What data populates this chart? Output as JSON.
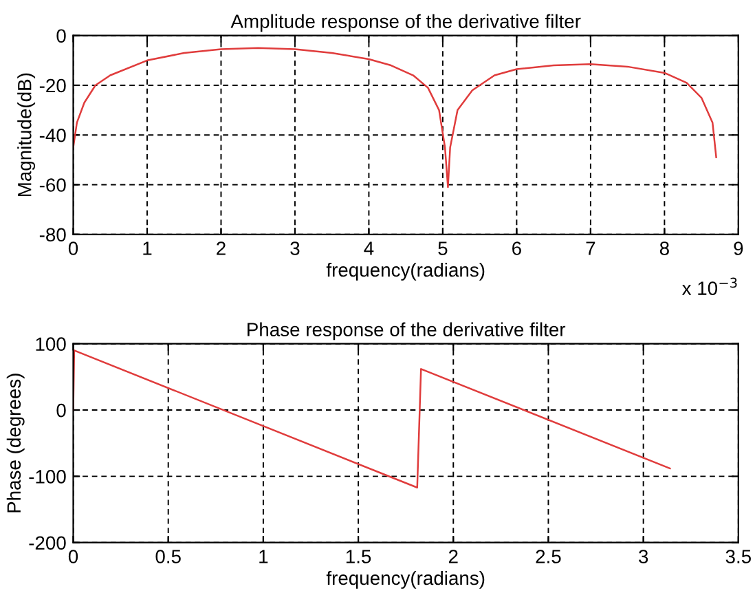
{
  "chart_data": [
    {
      "type": "line",
      "title": "Amplitude response of the derivative filter",
      "xlabel": "frequency(radians)",
      "ylabel": "Magnitude(dB)",
      "annotations": [
        "x 10$^{−3}$"
      ],
      "series": [
        {
          "color": "#e03c3c",
          "x": [
            0,
            0.05,
            0.15,
            0.3,
            0.5,
            1,
            1.5,
            2,
            2.5,
            3,
            3.5,
            4,
            4.3,
            4.6,
            4.8,
            4.95,
            5.03,
            5.07,
            5.1,
            5.2,
            5.4,
            5.7,
            6,
            6.5,
            7,
            7.5,
            8,
            8.3,
            8.5,
            8.65,
            8.7
          ],
          "values": [
            -45,
            -35,
            -27,
            -20,
            -16,
            -10,
            -7,
            -5.5,
            -5,
            -5.5,
            -7,
            -9.5,
            -12,
            -16,
            -21,
            -30,
            -45,
            -61,
            -45,
            -30,
            -22,
            -16,
            -13.5,
            -12,
            -11.5,
            -12.5,
            -15,
            -19,
            -25,
            -35,
            -49
          ]
        }
      ],
      "xlim": [
        0,
        9
      ],
      "xticks": [
        0,
        1,
        2,
        3,
        4,
        5,
        6,
        7,
        8,
        9
      ],
      "ylim": [
        -80,
        0
      ],
      "yticks": [
        -80,
        -60,
        -40,
        -20,
        0
      ],
      "grid": true,
      "line_style": "solid"
    },
    {
      "type": "line",
      "title": "Phase response of the derivative filter",
      "xlabel": "frequency(radians)",
      "ylabel": "Phase (degrees)",
      "series": [
        {
          "color": "#e03c3c",
          "x": [
            0,
            0.005,
            1.81,
            1.83,
            3.14
          ],
          "values": [
            0,
            90,
            -117,
            62,
            -88
          ]
        }
      ],
      "xlim": [
        0,
        3.5
      ],
      "xticks": [
        0,
        0.5,
        1,
        1.5,
        2,
        2.5,
        3,
        3.5
      ],
      "ylim": [
        -200,
        100
      ],
      "yticks": [
        -200,
        -100,
        0,
        100
      ],
      "grid": true,
      "line_style": "solid"
    }
  ]
}
